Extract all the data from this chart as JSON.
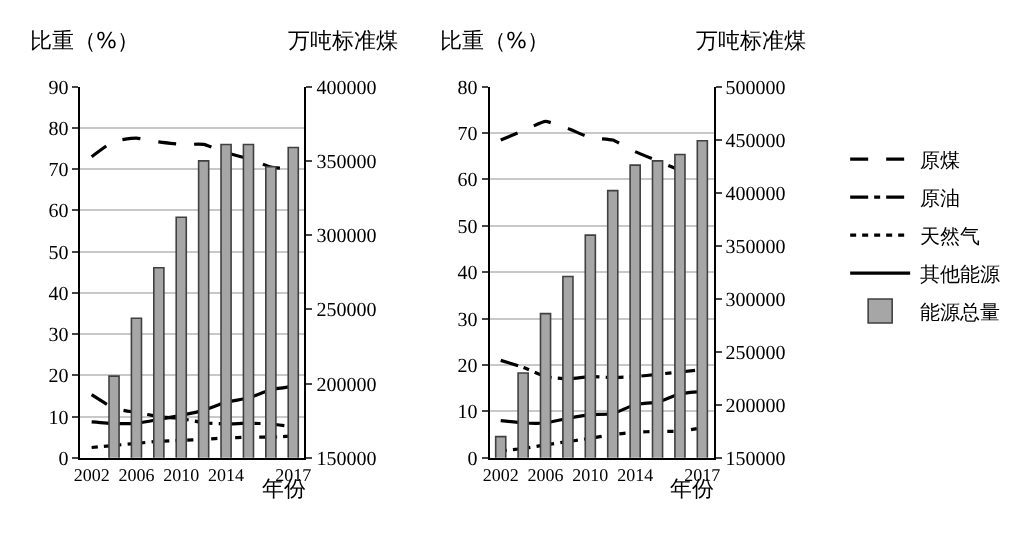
{
  "chart_data": [
    {
      "type": "line",
      "ylabel": "比重（%）",
      "y2label": "万吨标准煤",
      "xlabel": "年份",
      "categories": [
        "2002",
        null,
        "2006",
        null,
        "2010",
        null,
        "2014",
        null,
        null,
        "2017"
      ],
      "ylim": [
        0,
        90
      ],
      "yticks": [
        0,
        10,
        20,
        30,
        40,
        50,
        60,
        70,
        80,
        90
      ],
      "y2lim": [
        150000,
        400000
      ],
      "y2ticks": [
        150000,
        200000,
        250000,
        300000,
        350000,
        400000
      ],
      "grid": "y",
      "legend": "right",
      "series": [
        {
          "name": "能源总量",
          "type": "bar",
          "axis": "y2",
          "color": "#a6a6a6",
          "values": [
            null,
            205000,
            244000,
            278000,
            312000,
            350000,
            361000,
            361000,
            346000,
            359000
          ]
        },
        {
          "name": "原煤",
          "line_style": "dashed",
          "color": "#000000",
          "values": [
            73,
            76.8,
            77.5,
            76.6,
            76,
            76,
            74,
            72.5,
            70.5,
            70
          ]
        },
        {
          "name": "原油",
          "line_style": "dashdot",
          "color": "#000000",
          "values": [
            15.3,
            12,
            11,
            10,
            9.5,
            8.5,
            8.2,
            8.4,
            8.2,
            7.5
          ]
        },
        {
          "name": "天然气",
          "line_style": "dotted",
          "color": "#000000",
          "values": [
            2.5,
            3,
            3.5,
            4,
            4.2,
            4.5,
            4.8,
            5,
            5,
            5.3
          ]
        },
        {
          "name": "其他能源",
          "line_style": "solid",
          "color": "#000000",
          "values": [
            8.7,
            8.3,
            8.4,
            9.3,
            10.3,
            11.5,
            13.5,
            14.5,
            16.5,
            17.3
          ]
        }
      ]
    },
    {
      "type": "line",
      "ylabel": "比重（%）",
      "y2label": "万吨标准煤",
      "xlabel": "年份",
      "categories": [
        "2002",
        null,
        "2006",
        null,
        "2010",
        null,
        "2014",
        null,
        null,
        "2017"
      ],
      "ylim": [
        0,
        80
      ],
      "yticks": [
        0,
        10,
        20,
        30,
        40,
        50,
        60,
        70,
        80
      ],
      "y2lim": [
        150000,
        500000
      ],
      "y2ticks": [
        150000,
        200000,
        250000,
        300000,
        350000,
        400000,
        450000,
        500000
      ],
      "grid": "y",
      "legend": "right",
      "series": [
        {
          "name": "能源总量",
          "type": "bar",
          "axis": "y2",
          "color": "#a6a6a6",
          "values": [
            170000,
            230000,
            286000,
            321000,
            360000,
            402000,
            426000,
            430000,
            436000,
            449000
          ]
        },
        {
          "name": "原煤",
          "line_style": "dashed",
          "color": "#000000",
          "values": [
            68.5,
            70.5,
            72.5,
            71,
            69,
            68.5,
            66,
            64,
            62,
            60.5
          ]
        },
        {
          "name": "原油",
          "line_style": "dashdot",
          "color": "#000000",
          "values": [
            21,
            19.5,
            17.5,
            17,
            17.5,
            17.3,
            17.5,
            18,
            18.5,
            19
          ]
        },
        {
          "name": "天然气",
          "line_style": "dotted",
          "color": "#000000",
          "values": [
            1.5,
            2,
            2.8,
            3.5,
            4.2,
            5,
            5.5,
            5.7,
            5.7,
            6.5
          ]
        },
        {
          "name": "其他能源",
          "line_style": "solid",
          "color": "#000000",
          "values": [
            8,
            7.5,
            7.5,
            8.5,
            9.3,
            9.5,
            11.5,
            12,
            13.8,
            14.3
          ]
        }
      ]
    }
  ]
}
